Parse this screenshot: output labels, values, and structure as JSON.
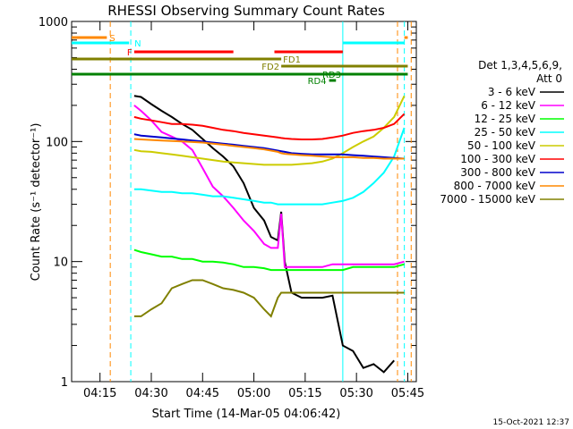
{
  "chart_data": {
    "type": "line",
    "title": "RHESSI Observing Summary Count Rates",
    "xlabel": "Start Time (14-Mar-05 04:06:42)",
    "ylabel": "Count Rate (s⁻¹ detector⁻¹)",
    "y_scale": "log",
    "ylim": [
      1,
      1000
    ],
    "xlim": [
      "04:06:42",
      "05:47:30"
    ],
    "x_tick_labels": [
      "04:15",
      "04:30",
      "04:45",
      "05:00",
      "05:15",
      "05:30",
      "05:45"
    ],
    "y_tick_labels": [
      "1",
      "10",
      "100",
      "1000"
    ],
    "timestamp": "15-Oct-2021 12:37",
    "legend": {
      "placement": "right",
      "header": [
        "Det 1,3,4,5,6,9,",
        "Att 0"
      ]
    },
    "series": [
      {
        "name": "3 - 6 keV",
        "color": "#000000",
        "x": [
          "04:24",
          "04:25",
          "04:27",
          "04:30",
          "04:33",
          "04:36",
          "04:39",
          "04:42",
          "04:45",
          "04:48",
          "04:51",
          "04:54",
          "04:57",
          "05:00",
          "05:03",
          "05:05",
          "05:07",
          "05:08",
          "05:09",
          "05:11",
          "05:14",
          "05:17",
          "05:20",
          "05:23",
          "05:26",
          "05:29",
          "05:32",
          "05:35",
          "05:38",
          "05:41",
          "05:44"
        ],
        "values": [
          null,
          240,
          235,
          205,
          180,
          160,
          140,
          125,
          105,
          88,
          75,
          62,
          45,
          28,
          22,
          16,
          15,
          26,
          10,
          5.5,
          5,
          5,
          5,
          5.2,
          2,
          1.8,
          1.3,
          1.4,
          1.2,
          1.5,
          null
        ]
      },
      {
        "name": "6 - 12 keV",
        "color": "#ff00ff",
        "x": [
          "04:24",
          "04:25",
          "04:27",
          "04:30",
          "04:33",
          "04:36",
          "04:39",
          "04:42",
          "04:45",
          "04:48",
          "04:51",
          "04:54",
          "04:57",
          "05:00",
          "05:03",
          "05:05",
          "05:07",
          "05:08",
          "05:09",
          "05:11",
          "05:14",
          "05:17",
          "05:20",
          "05:23",
          "05:26",
          "05:29",
          "05:32",
          "05:35",
          "05:38",
          "05:41",
          "05:44"
        ],
        "values": [
          null,
          200,
          180,
          150,
          120,
          110,
          100,
          85,
          60,
          42,
          35,
          28,
          22,
          18,
          14,
          13,
          13,
          25,
          9,
          9,
          9,
          9,
          9,
          9.5,
          9.5,
          9.5,
          9.5,
          9.5,
          9.5,
          9.5,
          10
        ]
      },
      {
        "name": "12 - 25 keV",
        "color": "#00ff00",
        "x": [
          "04:24",
          "04:25",
          "04:27",
          "04:30",
          "04:33",
          "04:36",
          "04:39",
          "04:42",
          "04:45",
          "04:48",
          "04:51",
          "04:54",
          "04:57",
          "05:00",
          "05:03",
          "05:05",
          "05:07",
          "05:08",
          "05:09",
          "05:11",
          "05:14",
          "05:17",
          "05:20",
          "05:23",
          "05:26",
          "05:29",
          "05:32",
          "05:35",
          "05:38",
          "05:41",
          "05:44"
        ],
        "values": [
          null,
          12.5,
          12,
          11.5,
          11,
          11,
          10.5,
          10.5,
          10,
          10,
          9.8,
          9.5,
          9,
          9,
          8.8,
          8.5,
          8.5,
          8.5,
          8.5,
          8.5,
          8.5,
          8.5,
          8.5,
          8.5,
          8.5,
          9,
          9,
          9,
          9,
          9,
          9.5
        ]
      },
      {
        "name": "25 - 50 keV",
        "color": "#00ffff",
        "x": [
          "04:24",
          "04:25",
          "04:27",
          "04:30",
          "04:33",
          "04:36",
          "04:39",
          "04:42",
          "04:45",
          "04:48",
          "04:51",
          "04:54",
          "04:57",
          "05:00",
          "05:03",
          "05:05",
          "05:07",
          "05:08",
          "05:09",
          "05:11",
          "05:14",
          "05:17",
          "05:20",
          "05:23",
          "05:26",
          "05:29",
          "05:32",
          "05:35",
          "05:38",
          "05:41",
          "05:44"
        ],
        "values": [
          null,
          40,
          40,
          39,
          38,
          38,
          37,
          37,
          36,
          35,
          35,
          34,
          33,
          32,
          31,
          31,
          30,
          30,
          30,
          30,
          30,
          30,
          30,
          31,
          32,
          34,
          38,
          45,
          55,
          75,
          130
        ]
      },
      {
        "name": "50 - 100 keV",
        "color": "#cccc00",
        "x": [
          "04:24",
          "04:25",
          "04:27",
          "04:30",
          "04:33",
          "04:36",
          "04:39",
          "04:42",
          "04:45",
          "04:48",
          "04:51",
          "04:54",
          "04:57",
          "05:00",
          "05:03",
          "05:05",
          "05:07",
          "05:08",
          "05:09",
          "05:11",
          "05:14",
          "05:17",
          "05:20",
          "05:23",
          "05:26",
          "05:29",
          "05:32",
          "05:35",
          "05:38",
          "05:41",
          "05:44"
        ],
        "values": [
          null,
          85,
          83,
          82,
          80,
          78,
          76,
          74,
          72,
          70,
          68,
          67,
          66,
          65,
          64,
          64,
          64,
          64,
          64,
          64,
          65,
          66,
          68,
          72,
          80,
          90,
          100,
          110,
          130,
          160,
          240
        ]
      },
      {
        "name": "100 - 300 keV",
        "color": "#ff0000",
        "x": [
          "04:24",
          "04:25",
          "04:27",
          "04:30",
          "04:33",
          "04:36",
          "04:39",
          "04:42",
          "04:45",
          "04:48",
          "04:51",
          "04:54",
          "04:57",
          "05:00",
          "05:03",
          "05:05",
          "05:07",
          "05:08",
          "05:09",
          "05:11",
          "05:14",
          "05:17",
          "05:20",
          "05:23",
          "05:26",
          "05:29",
          "05:32",
          "05:35",
          "05:38",
          "05:41",
          "05:44"
        ],
        "values": [
          null,
          160,
          155,
          150,
          145,
          140,
          140,
          138,
          135,
          130,
          125,
          122,
          118,
          115,
          112,
          110,
          108,
          107,
          106,
          105,
          104,
          104,
          105,
          108,
          112,
          118,
          122,
          125,
          130,
          140,
          170
        ]
      },
      {
        "name": "300 - 800 keV",
        "color": "#0000cc",
        "x": [
          "04:24",
          "04:25",
          "04:27",
          "04:30",
          "04:33",
          "04:36",
          "04:39",
          "04:42",
          "04:45",
          "04:48",
          "04:51",
          "04:54",
          "04:57",
          "05:00",
          "05:03",
          "05:05",
          "05:07",
          "05:08",
          "05:09",
          "05:11",
          "05:14",
          "05:17",
          "05:20",
          "05:23",
          "05:26",
          "05:29",
          "05:32",
          "05:35",
          "05:38",
          "05:41",
          "05:44"
        ],
        "values": [
          null,
          115,
          112,
          110,
          108,
          106,
          104,
          102,
          100,
          98,
          96,
          94,
          92,
          90,
          88,
          86,
          84,
          83,
          82,
          80,
          79,
          78,
          78,
          78,
          78,
          77,
          76,
          75,
          74,
          73,
          72
        ]
      },
      {
        "name": "800 - 7000 keV",
        "color": "#ff8800",
        "x": [
          "04:24",
          "04:25",
          "04:27",
          "04:30",
          "04:33",
          "04:36",
          "04:39",
          "04:42",
          "04:45",
          "04:48",
          "04:51",
          "04:54",
          "04:57",
          "05:00",
          "05:03",
          "05:05",
          "05:07",
          "05:08",
          "05:09",
          "05:11",
          "05:14",
          "05:17",
          "05:20",
          "05:23",
          "05:26",
          "05:29",
          "05:32",
          "05:35",
          "05:38",
          "05:41",
          "05:44"
        ],
        "values": [
          null,
          105,
          104,
          103,
          102,
          101,
          100,
          99,
          98,
          96,
          94,
          92,
          90,
          88,
          86,
          84,
          82,
          80,
          79,
          78,
          77,
          76,
          75,
          74,
          74,
          74,
          73,
          73,
          72,
          72,
          72
        ]
      },
      {
        "name": "7000 - 15000 keV",
        "color": "#808000",
        "x": [
          "04:24",
          "04:25",
          "04:27",
          "04:30",
          "04:33",
          "04:36",
          "04:39",
          "04:42",
          "04:45",
          "04:48",
          "04:51",
          "04:54",
          "04:57",
          "05:00",
          "05:03",
          "05:05",
          "05:07",
          "05:08",
          "05:09",
          "05:11",
          "05:14",
          "05:17",
          "05:20",
          "05:23",
          "05:26",
          "05:29",
          "05:32",
          "05:35",
          "05:38",
          "05:41",
          "05:44"
        ],
        "values": [
          null,
          3.5,
          3.5,
          4,
          4.5,
          6,
          6.5,
          7,
          7,
          6.5,
          6,
          5.8,
          5.5,
          5,
          4,
          3.5,
          5,
          5.5,
          5.5,
          5.5,
          5.5,
          5.5,
          5.5,
          5.5,
          5.5,
          5.5,
          5.5,
          5.5,
          5.5,
          5.5,
          5.5
        ]
      }
    ],
    "state_bars": [
      {
        "label": "S",
        "color": "#ff8800",
        "segments": [
          [
            "04:06:42",
            "04:17"
          ],
          [
            "05:44",
            "05:45"
          ]
        ]
      },
      {
        "label": "N",
        "color": "#00ffff",
        "segments": [
          [
            "04:06:42",
            "04:23:30"
          ],
          [
            "05:26",
            "05:44"
          ]
        ]
      },
      {
        "label": "F",
        "color": "#ff0000",
        "segments": [
          [
            "04:25",
            "04:54"
          ],
          [
            "05:06",
            "05:26"
          ]
        ]
      },
      {
        "label": "FD1",
        "color": "#808000",
        "segments": [
          [
            "04:06:42",
            "05:08"
          ]
        ]
      },
      {
        "label": "FD2",
        "color": "#808000",
        "segments": [
          [
            "05:08",
            "05:45"
          ]
        ]
      },
      {
        "label": "RD3",
        "color": "#008000",
        "segments": [
          [
            "04:06:42",
            "05:45"
          ]
        ]
      },
      {
        "label": "RD4",
        "color": "#008000",
        "segments": [
          [
            "05:22",
            "05:24"
          ]
        ]
      }
    ],
    "vertical_markers": [
      {
        "color": "#ff8800",
        "style": "dashed",
        "x": [
          "04:18",
          "05:42",
          "05:46"
        ]
      },
      {
        "color": "#00ffff",
        "style": "dashed",
        "x": [
          "04:24",
          "05:44"
        ]
      },
      {
        "color": "#00ffff",
        "style": "solid",
        "x": [
          "05:26"
        ]
      }
    ]
  }
}
